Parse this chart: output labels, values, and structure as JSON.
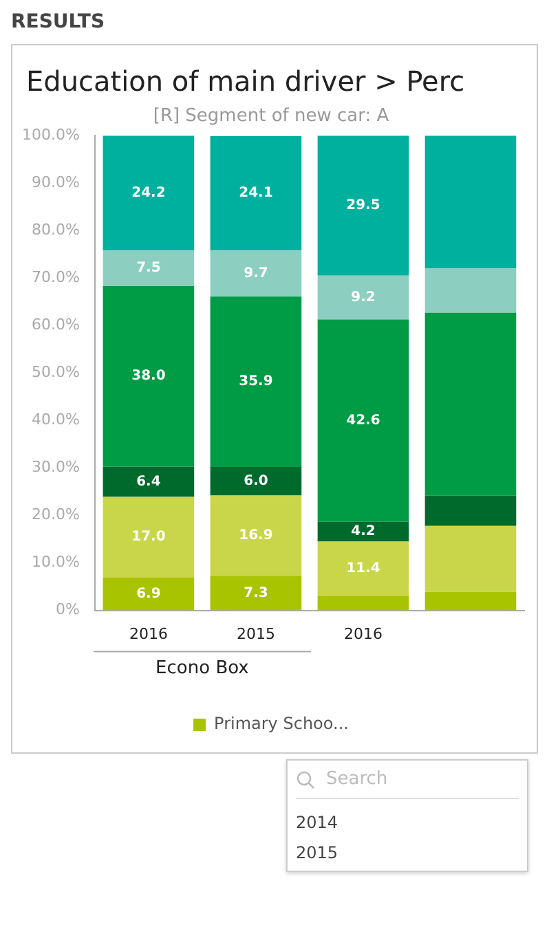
{
  "chart_data": {
    "type": "bar",
    "title": "Education of main driver > Perc",
    "subtitle": "[R] Segment of new car: A",
    "categories": [
      "2016",
      "2015",
      "2016",
      null
    ],
    "stacked": true,
    "legend": "bottom",
    "grid": false,
    "ylim": [
      0,
      100
    ],
    "yticks": [
      {
        "value": 0,
        "label": "0%"
      },
      {
        "value": 10,
        "label": "10.0%"
      },
      {
        "value": 20,
        "label": "20.0%"
      },
      {
        "value": 30,
        "label": "30.0%"
      },
      {
        "value": 40,
        "label": "40.0%"
      },
      {
        "value": 50,
        "label": "50.0%"
      },
      {
        "value": 60,
        "label": "60.0%"
      },
      {
        "value": 70,
        "label": "70.0%"
      },
      {
        "value": 80,
        "label": "80.0%"
      },
      {
        "value": 90,
        "label": "90.0%"
      },
      {
        "value": 100,
        "label": "100.0%"
      }
    ],
    "series": [
      {
        "name": "Primary Schoo...",
        "color": "#a8c300",
        "values": [
          6.9,
          7.3,
          3.1,
          3.9
        ],
        "value_labels": [
          "6.9",
          "7.3",
          null,
          null
        ]
      },
      {
        "color": "#c9d64a",
        "values": [
          17.0,
          16.9,
          11.4,
          13.9
        ],
        "value_labels": [
          "17.0",
          "16.9",
          "11.4",
          null
        ]
      },
      {
        "color": "#006a2c",
        "values": [
          6.4,
          6.0,
          4.2,
          6.4
        ],
        "value_labels": [
          "6.4",
          "6.0",
          "4.2",
          null
        ]
      },
      {
        "color": "#009b45",
        "values": [
          38.0,
          35.9,
          42.6,
          38.5
        ],
        "value_labels": [
          "38.0",
          "35.9",
          "42.6",
          null
        ]
      },
      {
        "color": "#8ccfc0",
        "values": [
          7.5,
          9.7,
          9.2,
          9.3
        ],
        "value_labels": [
          "7.5",
          "9.7",
          "9.2",
          null
        ]
      },
      {
        "color": "#00b09e",
        "values": [
          24.2,
          24.1,
          29.5,
          28.0
        ],
        "value_labels": [
          "24.2",
          "24.1",
          "29.5",
          null
        ]
      }
    ],
    "annotations": [
      "RESULTS",
      "Econo Box",
      "Search",
      "2014",
      "2015"
    ]
  }
}
